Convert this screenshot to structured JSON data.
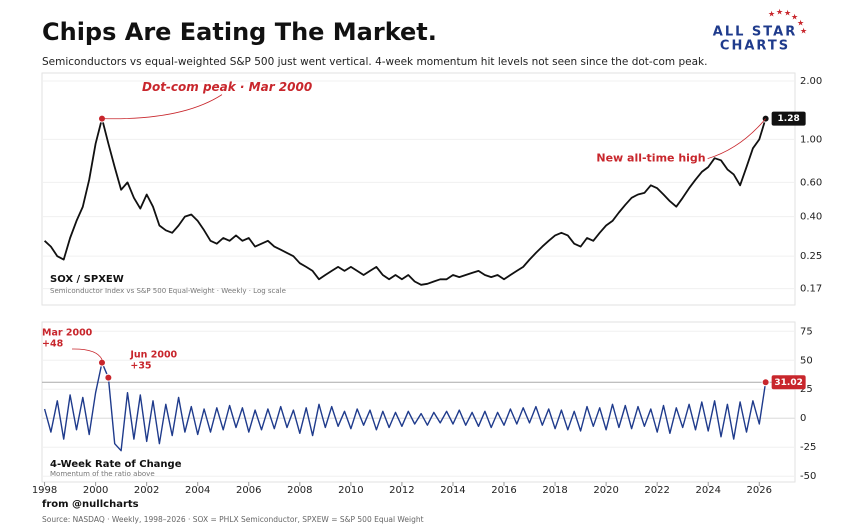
{
  "header": {
    "title": "Chips Are Eating The Market.",
    "subtitle": "Semiconductors vs equal-weighted S&P 500 just went vertical. 4-week momentum hit levels not seen since the dot-com peak.",
    "logo": [
      "ALL STAR",
      "CHARTS"
    ]
  },
  "chart_data": [
    {
      "type": "line",
      "title": "SOX / SPXEW",
      "subtitle": "Semiconductor Index vs S&P 500 Equal-Weight  ·  Weekly  ·  Log scale",
      "log_y": true,
      "color": "#111111",
      "xlim": [
        1997.9,
        2027.4
      ],
      "ylim": [
        0.14,
        2.2
      ],
      "yticks": [
        {
          "value": 2,
          "label": "2.00"
        },
        {
          "value": 1,
          "label": "1.00"
        },
        {
          "value": 0.6,
          "label": "0.60"
        },
        {
          "value": 0.4,
          "label": "0.40"
        },
        0.25,
        0.17
      ],
      "x": [
        1998,
        1998.25,
        1998.5,
        1998.75,
        1999,
        1999.25,
        1999.5,
        1999.75,
        2000,
        2000.25,
        2000.5,
        2000.75,
        2001,
        2001.25,
        2001.5,
        2001.75,
        2002,
        2002.25,
        2002.5,
        2002.75,
        2003,
        2003.25,
        2003.5,
        2003.75,
        2004,
        2004.25,
        2004.5,
        2004.75,
        2005,
        2005.25,
        2005.5,
        2005.75,
        2006,
        2006.25,
        2006.5,
        2006.75,
        2007,
        2007.25,
        2007.5,
        2007.75,
        2008,
        2008.25,
        2008.5,
        2008.75,
        2009,
        2009.25,
        2009.5,
        2009.75,
        2010,
        2010.25,
        2010.5,
        2010.75,
        2011,
        2011.25,
        2011.5,
        2011.75,
        2012,
        2012.25,
        2012.5,
        2012.75,
        2013,
        2013.25,
        2013.5,
        2013.75,
        2014,
        2014.25,
        2014.5,
        2014.75,
        2015,
        2015.25,
        2015.5,
        2015.75,
        2016,
        2016.25,
        2016.5,
        2016.75,
        2017,
        2017.25,
        2017.5,
        2017.75,
        2018,
        2018.25,
        2018.5,
        2018.75,
        2019,
        2019.25,
        2019.5,
        2019.75,
        2020,
        2020.25,
        2020.5,
        2020.75,
        2021,
        2021.25,
        2021.5,
        2021.75,
        2022,
        2022.25,
        2022.5,
        2022.75,
        2023,
        2023.25,
        2023.5,
        2023.75,
        2024,
        2024.25,
        2024.5,
        2024.75,
        2025,
        2025.25,
        2025.5,
        2025.75,
        2026,
        2026.25
      ],
      "values": [
        0.3,
        0.28,
        0.25,
        0.24,
        0.31,
        0.38,
        0.45,
        0.62,
        0.95,
        1.28,
        0.95,
        0.72,
        0.55,
        0.6,
        0.5,
        0.44,
        0.52,
        0.45,
        0.36,
        0.34,
        0.33,
        0.36,
        0.4,
        0.41,
        0.38,
        0.34,
        0.3,
        0.29,
        0.31,
        0.3,
        0.32,
        0.3,
        0.31,
        0.28,
        0.29,
        0.3,
        0.28,
        0.27,
        0.26,
        0.25,
        0.23,
        0.22,
        0.21,
        0.19,
        0.2,
        0.21,
        0.22,
        0.21,
        0.22,
        0.21,
        0.2,
        0.21,
        0.22,
        0.2,
        0.19,
        0.2,
        0.19,
        0.2,
        0.185,
        0.178,
        0.18,
        0.185,
        0.19,
        0.19,
        0.2,
        0.195,
        0.2,
        0.205,
        0.21,
        0.2,
        0.195,
        0.2,
        0.19,
        0.2,
        0.21,
        0.22,
        0.24,
        0.26,
        0.28,
        0.3,
        0.32,
        0.33,
        0.32,
        0.29,
        0.28,
        0.31,
        0.3,
        0.33,
        0.36,
        0.38,
        0.42,
        0.46,
        0.5,
        0.52,
        0.53,
        0.58,
        0.56,
        0.52,
        0.48,
        0.45,
        0.5,
        0.56,
        0.62,
        0.68,
        0.72,
        0.8,
        0.78,
        0.7,
        0.66,
        0.58,
        0.72,
        0.9,
        1.0,
        1.28
      ],
      "annotations": [
        {
          "text": "Dot-com peak · Mar 2000",
          "x": 2000.25
        },
        {
          "text": "New all-time high",
          "x": 2026.25
        }
      ]
    },
    {
      "type": "line",
      "title": "4-Week Rate of Change",
      "subtitle": "Momentum of the ratio above",
      "log_y": false,
      "color": "#1f3b8c",
      "xlim": [
        1997.9,
        2027.4
      ],
      "ylim": [
        -55,
        83
      ],
      "yticks": [
        75,
        50,
        25,
        0,
        -25,
        -50
      ],
      "xticks": [
        1998,
        2000,
        2002,
        2004,
        2006,
        2008,
        2010,
        2012,
        2014,
        2016,
        2018,
        2020,
        2022,
        2024,
        2026
      ],
      "x": [
        1998,
        1998.25,
        1998.5,
        1998.75,
        1999,
        1999.25,
        1999.5,
        1999.75,
        2000,
        2000.25,
        2000.5,
        2000.75,
        2001,
        2001.25,
        2001.5,
        2001.75,
        2002,
        2002.25,
        2002.5,
        2002.75,
        2003,
        2003.25,
        2003.5,
        2003.75,
        2004,
        2004.25,
        2004.5,
        2004.75,
        2005,
        2005.25,
        2005.5,
        2005.75,
        2006,
        2006.25,
        2006.5,
        2006.75,
        2007,
        2007.25,
        2007.5,
        2007.75,
        2008,
        2008.25,
        2008.5,
        2008.75,
        2009,
        2009.25,
        2009.5,
        2009.75,
        2010,
        2010.25,
        2010.5,
        2010.75,
        2011,
        2011.25,
        2011.5,
        2011.75,
        2012,
        2012.25,
        2012.5,
        2012.75,
        2013,
        2013.25,
        2013.5,
        2013.75,
        2014,
        2014.25,
        2014.5,
        2014.75,
        2015,
        2015.25,
        2015.5,
        2015.75,
        2016,
        2016.25,
        2016.5,
        2016.75,
        2017,
        2017.25,
        2017.5,
        2017.75,
        2018,
        2018.25,
        2018.5,
        2018.75,
        2019,
        2019.25,
        2019.5,
        2019.75,
        2020,
        2020.25,
        2020.5,
        2020.75,
        2021,
        2021.25,
        2021.5,
        2021.75,
        2022,
        2022.25,
        2022.5,
        2022.75,
        2023,
        2023.25,
        2023.5,
        2023.75,
        2024,
        2024.25,
        2024.5,
        2024.75,
        2025,
        2025.25,
        2025.5,
        2025.75,
        2026,
        2026.25
      ],
      "values": [
        8,
        -12,
        15,
        -18,
        20,
        -10,
        18,
        -14,
        22,
        48,
        35,
        -22,
        -28,
        22,
        -18,
        20,
        -20,
        15,
        -22,
        12,
        -15,
        18,
        -12,
        10,
        -14,
        8,
        -12,
        9,
        -10,
        11,
        -8,
        9,
        -12,
        7,
        -10,
        8,
        -9,
        10,
        -8,
        7,
        -13,
        9,
        -15,
        12,
        -8,
        10,
        -7,
        6,
        -9,
        8,
        -6,
        7,
        -10,
        6,
        -8,
        5,
        -7,
        6,
        -5,
        4,
        -6,
        5,
        -4,
        6,
        -5,
        7,
        -6,
        5,
        -7,
        6,
        -8,
        5,
        -6,
        8,
        -5,
        9,
        -4,
        10,
        -6,
        8,
        -9,
        7,
        -10,
        6,
        -11,
        10,
        -7,
        9,
        -10,
        12,
        -8,
        11,
        -9,
        10,
        -7,
        8,
        -12,
        11,
        -13,
        9,
        -8,
        12,
        -10,
        14,
        -11,
        15,
        -16,
        12,
        -18,
        14,
        -12,
        15,
        -5,
        31.02
      ],
      "annotations": [
        {
          "text": "Mar 2000",
          "label": "+48",
          "x": 2000.25
        },
        {
          "text": "Jun 2000",
          "label": "+35",
          "x": 2000.5
        }
      ]
    }
  ],
  "footer": {
    "credit": "from  @nullcharts",
    "source": "Source: NASDAQ  ·  Weekly, 1998–2026  ·  SOX = PHLX Semiconductor, SPXEW = S&P 500 Equal Weight"
  }
}
